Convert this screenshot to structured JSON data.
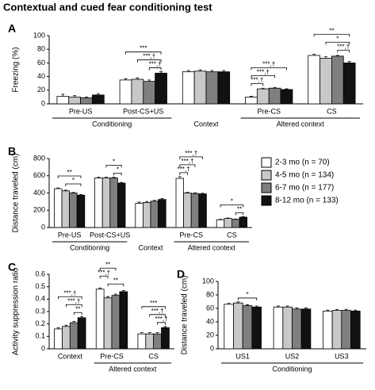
{
  "title": "Contextual and cued fear conditioning test",
  "legend": [
    {
      "name": "2-3 mo (n = 70)",
      "color": "#ffffff"
    },
    {
      "name": "4-5 mo (n = 134)",
      "color": "#c8c8c8"
    },
    {
      "name": "6-7 mo (n = 177)",
      "color": "#7f7f7f"
    },
    {
      "name": "8-12 mo (n = 133)",
      "color": "#111111"
    }
  ],
  "chart_data": [
    {
      "type": "bar",
      "label": "A",
      "ylabel": "Freezing (%)",
      "categories": [
        "Pre-US",
        "Post-CS+US",
        null,
        "Pre-CS",
        "CS"
      ],
      "groups": [
        {
          "label": "Conditioning",
          "span": 2
        },
        {
          "label": "Context",
          "span": 1
        },
        {
          "label": "Altered context",
          "span": 2
        }
      ],
      "series": [
        {
          "values": [
            11,
            35,
            47,
            10,
            71
          ],
          "errors": [
            3,
            2,
            2,
            1,
            2
          ]
        },
        {
          "values": [
            10,
            36,
            48,
            22,
            67
          ],
          "errors": [
            2,
            2,
            2,
            1,
            2
          ]
        },
        {
          "values": [
            9,
            33,
            47,
            23,
            70
          ],
          "errors": [
            1,
            2,
            2,
            1,
            1
          ]
        },
        {
          "values": [
            13,
            45,
            47,
            21,
            60
          ],
          "errors": [
            2,
            2,
            2,
            1,
            2
          ]
        }
      ],
      "ylim": [
        0,
        100
      ],
      "yticks": [
        0,
        20,
        40,
        60,
        80,
        100
      ],
      "annotations": [
        "***",
        "***,†",
        "***,†",
        "***,†",
        "***,†",
        "***,†",
        "**",
        "*",
        "***,†"
      ]
    },
    {
      "type": "bar",
      "label": "B",
      "ylabel": "Distance traveled (cm)",
      "categories": [
        "Pre-US",
        "Post-CS+US",
        null,
        "Pre-CS",
        "CS"
      ],
      "groups": [
        {
          "label": "Conditioning",
          "span": 2
        },
        {
          "label": "Context",
          "span": 1
        },
        {
          "label": "Altered context",
          "span": 2
        }
      ],
      "series": [
        {
          "values": [
            450,
            575,
            280,
            570,
            90
          ],
          "errors": [
            10,
            10,
            15,
            20,
            5
          ]
        },
        {
          "values": [
            425,
            575,
            290,
            400,
            105
          ],
          "errors": [
            8,
            8,
            12,
            8,
            5
          ]
        },
        {
          "values": [
            400,
            575,
            305,
            395,
            95
          ],
          "errors": [
            7,
            7,
            10,
            7,
            4
          ]
        },
        {
          "values": [
            375,
            515,
            325,
            390,
            120
          ],
          "errors": [
            8,
            8,
            12,
            8,
            5
          ]
        }
      ],
      "ylim": [
        0,
        800
      ],
      "yticks": [
        0,
        200,
        400,
        600,
        800
      ],
      "annotations": [
        "**",
        "*",
        "*",
        "*",
        "***,†",
        "***,†",
        "***,†",
        "*",
        "**"
      ]
    },
    {
      "type": "bar",
      "label": "C",
      "ylabel": "Activity suppression ratio",
      "categories": [
        "Context",
        "Pre-CS",
        "CS"
      ],
      "groups": [
        {
          "label": null,
          "span": 1
        },
        {
          "label": "Altered context",
          "span": 2
        }
      ],
      "series": [
        {
          "values": [
            0.16,
            0.48,
            0.12
          ],
          "errors": [
            0.01,
            0.01,
            0.01
          ]
        },
        {
          "values": [
            0.18,
            0.41,
            0.12
          ],
          "errors": [
            0.01,
            0.01,
            0.01
          ]
        },
        {
          "values": [
            0.21,
            0.43,
            0.12
          ],
          "errors": [
            0.01,
            0.01,
            0.01
          ]
        },
        {
          "values": [
            0.25,
            0.46,
            0.17
          ],
          "errors": [
            0.01,
            0.01,
            0.01
          ]
        }
      ],
      "ylim": [
        0,
        0.6
      ],
      "yticks": [
        0,
        0.1,
        0.2,
        0.3,
        0.4,
        0.5,
        0.6
      ],
      "annotations": [
        "***,†",
        "***,†",
        "**",
        "**",
        "***,†",
        "**",
        "***",
        "***,†",
        "***,†"
      ]
    },
    {
      "type": "bar",
      "label": "D",
      "ylabel": "Distance traveled (cm)",
      "categories": [
        "US1",
        "US2",
        "US3"
      ],
      "groups": [
        {
          "label": "Conditioning",
          "span": 3
        }
      ],
      "series": [
        {
          "values": [
            66,
            62,
            56
          ],
          "errors": [
            1.5,
            1.5,
            1.5
          ]
        },
        {
          "values": [
            68,
            62,
            57
          ],
          "errors": [
            1.5,
            1.5,
            1.5
          ]
        },
        {
          "values": [
            64,
            59,
            57
          ],
          "errors": [
            1.5,
            1.5,
            1.5
          ]
        },
        {
          "values": [
            62,
            59,
            56
          ],
          "errors": [
            1.5,
            1.5,
            1.5
          ]
        }
      ],
      "ylim": [
        0,
        100
      ],
      "yticks": [
        0,
        20,
        40,
        60,
        80,
        100
      ],
      "annotations": [
        "*"
      ]
    }
  ]
}
